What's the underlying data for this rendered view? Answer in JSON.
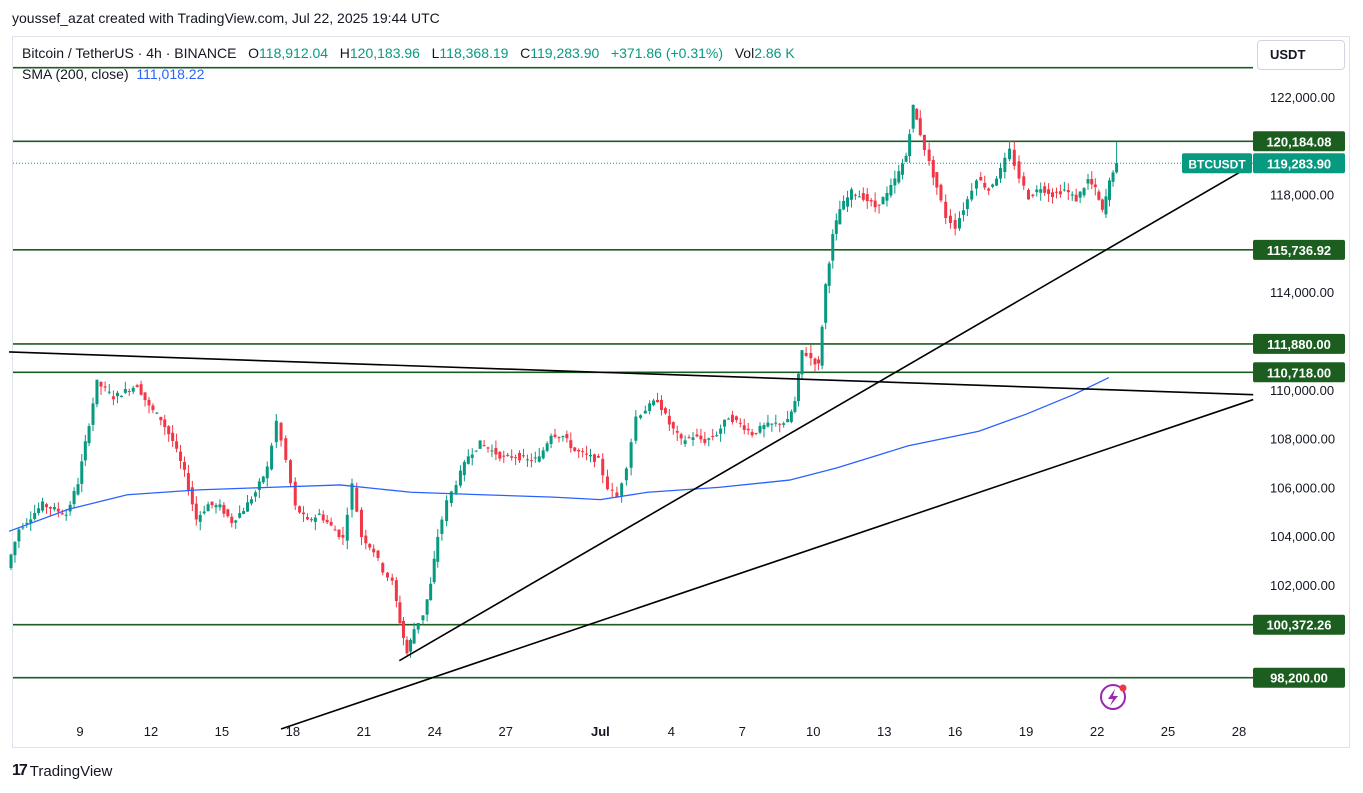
{
  "header": {
    "credit": "youssef_azat created with TradingView.com, Jul 22, 2025 19:44 UTC"
  },
  "legend": {
    "symbol": "Bitcoin / TetherUS · 4h · BINANCE",
    "open_label": "O",
    "open": "118,912.04",
    "high_label": "H",
    "high": "120,183.96",
    "low_label": "L",
    "low": "118,368.19",
    "close_label": "C",
    "close": "119,283.90",
    "change": "+371.86 (+0.31%)",
    "vol_label": "Vol",
    "vol": "2.86 K",
    "sma_label": "SMA (200, close)",
    "sma_value": "111,018.22"
  },
  "currency_button": "USDT",
  "brand": {
    "name": "TradingView"
  },
  "colors": {
    "up": "#089981",
    "down": "#f23645",
    "sma": "#2962ff",
    "level": "#1b5e20",
    "trend": "#000000"
  },
  "chart_data": {
    "type": "candlestick",
    "symbol": "BTCUSDT",
    "timeframe": "4h",
    "x_tick_labels": [
      "9",
      "12",
      "15",
      "18",
      "21",
      "24",
      "27",
      "Jul",
      "4",
      "7",
      "10",
      "13",
      "16",
      "19",
      "22",
      "25",
      "28"
    ],
    "y_tick_labels": [
      "122,000.00",
      "118,000.00",
      "114,000.00",
      "110,000.00",
      "108,000.00",
      "106,000.00",
      "104,000.00",
      "102,000.00"
    ],
    "ylim": [
      97500,
      124000
    ],
    "x_days": [
      9,
      12,
      15,
      18,
      21,
      24,
      27,
      31,
      34,
      37,
      40,
      43,
      46,
      49,
      52,
      55,
      58
    ],
    "horizontal_levels": [
      {
        "price": 123200,
        "label": ""
      },
      {
        "price": 120184.08,
        "label": "120,184.08"
      },
      {
        "price": 115736.92,
        "label": "115,736.92"
      },
      {
        "price": 111880.0,
        "label": "111,880.00"
      },
      {
        "price": 110718.0,
        "label": "110,718.00"
      },
      {
        "price": 100372.26,
        "label": "100,372.26"
      },
      {
        "price": 98200.0,
        "label": "98,200.00"
      }
    ],
    "current_price": {
      "symbol": "BTCUSDT",
      "label": "119,283.90",
      "price": 119283.9
    },
    "trendlines": [
      {
        "from": [
          6.0,
          111550
        ],
        "to": [
          58.6,
          109800
        ]
      },
      {
        "from": [
          22.5,
          98900
        ],
        "to": [
          58.0,
          118900
        ]
      },
      {
        "from": [
          17.5,
          96100
        ],
        "to": [
          58.6,
          109600
        ]
      }
    ],
    "sma": {
      "name": "SMA (200, close)",
      "points": [
        [
          6.0,
          104200
        ],
        [
          8.5,
          105100
        ],
        [
          11,
          105700
        ],
        [
          14,
          105900
        ],
        [
          17,
          106000
        ],
        [
          20,
          106100
        ],
        [
          23,
          105800
        ],
        [
          26,
          105700
        ],
        [
          29,
          105600
        ],
        [
          31,
          105500
        ],
        [
          33,
          105800
        ],
        [
          36,
          106000
        ],
        [
          39,
          106300
        ],
        [
          41,
          106800
        ],
        [
          44,
          107700
        ],
        [
          47,
          108300
        ],
        [
          49,
          109000
        ],
        [
          51,
          109800
        ],
        [
          52.5,
          110500
        ]
      ]
    },
    "price_path": [
      [
        6.0,
        102700
      ],
      [
        6.5,
        104300
      ],
      [
        7.5,
        105300
      ],
      [
        8.5,
        104900
      ],
      [
        9.0,
        106200
      ],
      [
        9.3,
        107800
      ],
      [
        9.8,
        110300
      ],
      [
        10.5,
        109700
      ],
      [
        11.5,
        110200
      ],
      [
        12.0,
        109300
      ],
      [
        12.5,
        108800
      ],
      [
        13.0,
        107900
      ],
      [
        13.5,
        106600
      ],
      [
        14.0,
        104700
      ],
      [
        14.5,
        105300
      ],
      [
        15.0,
        105200
      ],
      [
        15.5,
        104600
      ],
      [
        16.0,
        105100
      ],
      [
        16.5,
        105800
      ],
      [
        17.0,
        106800
      ],
      [
        17.4,
        108700
      ],
      [
        17.8,
        107100
      ],
      [
        18.2,
        105200
      ],
      [
        18.7,
        104600
      ],
      [
        19.2,
        104900
      ],
      [
        19.7,
        104400
      ],
      [
        20.2,
        103900
      ],
      [
        20.6,
        106100
      ],
      [
        21.0,
        104000
      ],
      [
        21.5,
        103400
      ],
      [
        21.9,
        102600
      ],
      [
        22.3,
        102100
      ],
      [
        22.6,
        100500
      ],
      [
        22.9,
        99200
      ],
      [
        23.2,
        100200
      ],
      [
        23.6,
        100800
      ],
      [
        23.9,
        102000
      ],
      [
        24.2,
        104000
      ],
      [
        24.6,
        105400
      ],
      [
        25.0,
        106200
      ],
      [
        25.5,
        107300
      ],
      [
        26.0,
        107800
      ],
      [
        26.5,
        107500
      ],
      [
        27.0,
        107200
      ],
      [
        27.5,
        107300
      ],
      [
        28.0,
        107100
      ],
      [
        28.5,
        107200
      ],
      [
        29.0,
        108200
      ],
      [
        29.5,
        108100
      ],
      [
        30.0,
        107500
      ],
      [
        30.5,
        107300
      ],
      [
        31.0,
        107100
      ],
      [
        31.4,
        106000
      ],
      [
        31.8,
        105600
      ],
      [
        32.2,
        106900
      ],
      [
        32.6,
        108900
      ],
      [
        33.0,
        109200
      ],
      [
        33.5,
        109600
      ],
      [
        34.0,
        108600
      ],
      [
        34.5,
        107900
      ],
      [
        35.0,
        108100
      ],
      [
        35.5,
        107900
      ],
      [
        36.0,
        108200
      ],
      [
        36.5,
        108900
      ],
      [
        37.0,
        108600
      ],
      [
        37.5,
        108200
      ],
      [
        38.0,
        108500
      ],
      [
        38.5,
        108600
      ],
      [
        39.0,
        108700
      ],
      [
        39.3,
        109500
      ],
      [
        39.6,
        111600
      ],
      [
        40.0,
        111300
      ],
      [
        40.3,
        111000
      ],
      [
        40.6,
        114300
      ],
      [
        40.9,
        116300
      ],
      [
        41.2,
        117400
      ],
      [
        41.7,
        118100
      ],
      [
        42.2,
        117900
      ],
      [
        42.7,
        117500
      ],
      [
        43.2,
        118000
      ],
      [
        43.7,
        118900
      ],
      [
        44.0,
        119600
      ],
      [
        44.3,
        121600
      ],
      [
        44.6,
        120500
      ],
      [
        45.0,
        119300
      ],
      [
        45.3,
        118300
      ],
      [
        45.7,
        117100
      ],
      [
        46.1,
        116700
      ],
      [
        46.6,
        117800
      ],
      [
        47.0,
        118700
      ],
      [
        47.5,
        118200
      ],
      [
        48.0,
        119000
      ],
      [
        48.4,
        119800
      ],
      [
        48.8,
        118700
      ],
      [
        49.2,
        117900
      ],
      [
        49.7,
        118300
      ],
      [
        50.2,
        118000
      ],
      [
        50.7,
        118200
      ],
      [
        51.2,
        117800
      ],
      [
        51.7,
        118600
      ],
      [
        52.0,
        118200
      ],
      [
        52.3,
        117300
      ],
      [
        52.6,
        118500
      ],
      [
        52.9,
        119500
      ]
    ]
  }
}
